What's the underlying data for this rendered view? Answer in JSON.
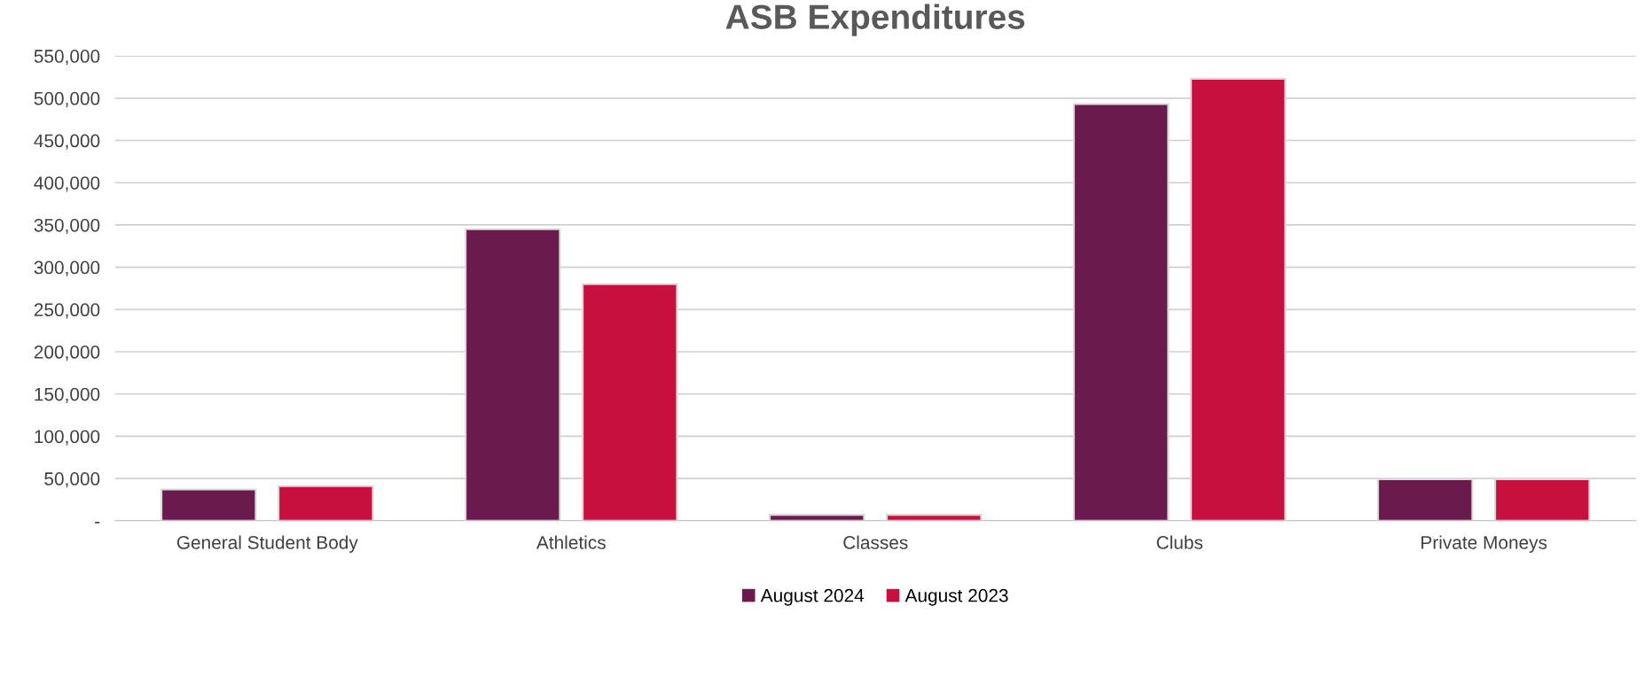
{
  "chart_data": {
    "type": "bar",
    "title": "ASB Expenditures",
    "categories": [
      "General Student Body",
      "Athletics",
      "Classes",
      "Clubs",
      "Private Moneys"
    ],
    "series": [
      {
        "name": "August 2024",
        "color": "#6b1a4e",
        "values": [
          37000,
          345000,
          7000,
          493000,
          49000
        ]
      },
      {
        "name": "August 2023",
        "color": "#c8103e",
        "values": [
          41000,
          280000,
          7000,
          523000,
          49000
        ]
      }
    ],
    "ylim": [
      0,
      550000
    ],
    "yticks": [
      {
        "value": 0,
        "label": "-"
      },
      {
        "value": 50000,
        "label": "50,000"
      },
      {
        "value": 100000,
        "label": "100,000"
      },
      {
        "value": 150000,
        "label": "150,000"
      },
      {
        "value": 200000,
        "label": "200,000"
      },
      {
        "value": 250000,
        "label": "250,000"
      },
      {
        "value": 300000,
        "label": "300,000"
      },
      {
        "value": 350000,
        "label": "350,000"
      },
      {
        "value": 400000,
        "label": "400,000"
      },
      {
        "value": 450000,
        "label": "450,000"
      },
      {
        "value": 500000,
        "label": "500,000"
      },
      {
        "value": 550000,
        "label": "550,000"
      }
    ],
    "grid": "y",
    "legend": "bottom"
  }
}
